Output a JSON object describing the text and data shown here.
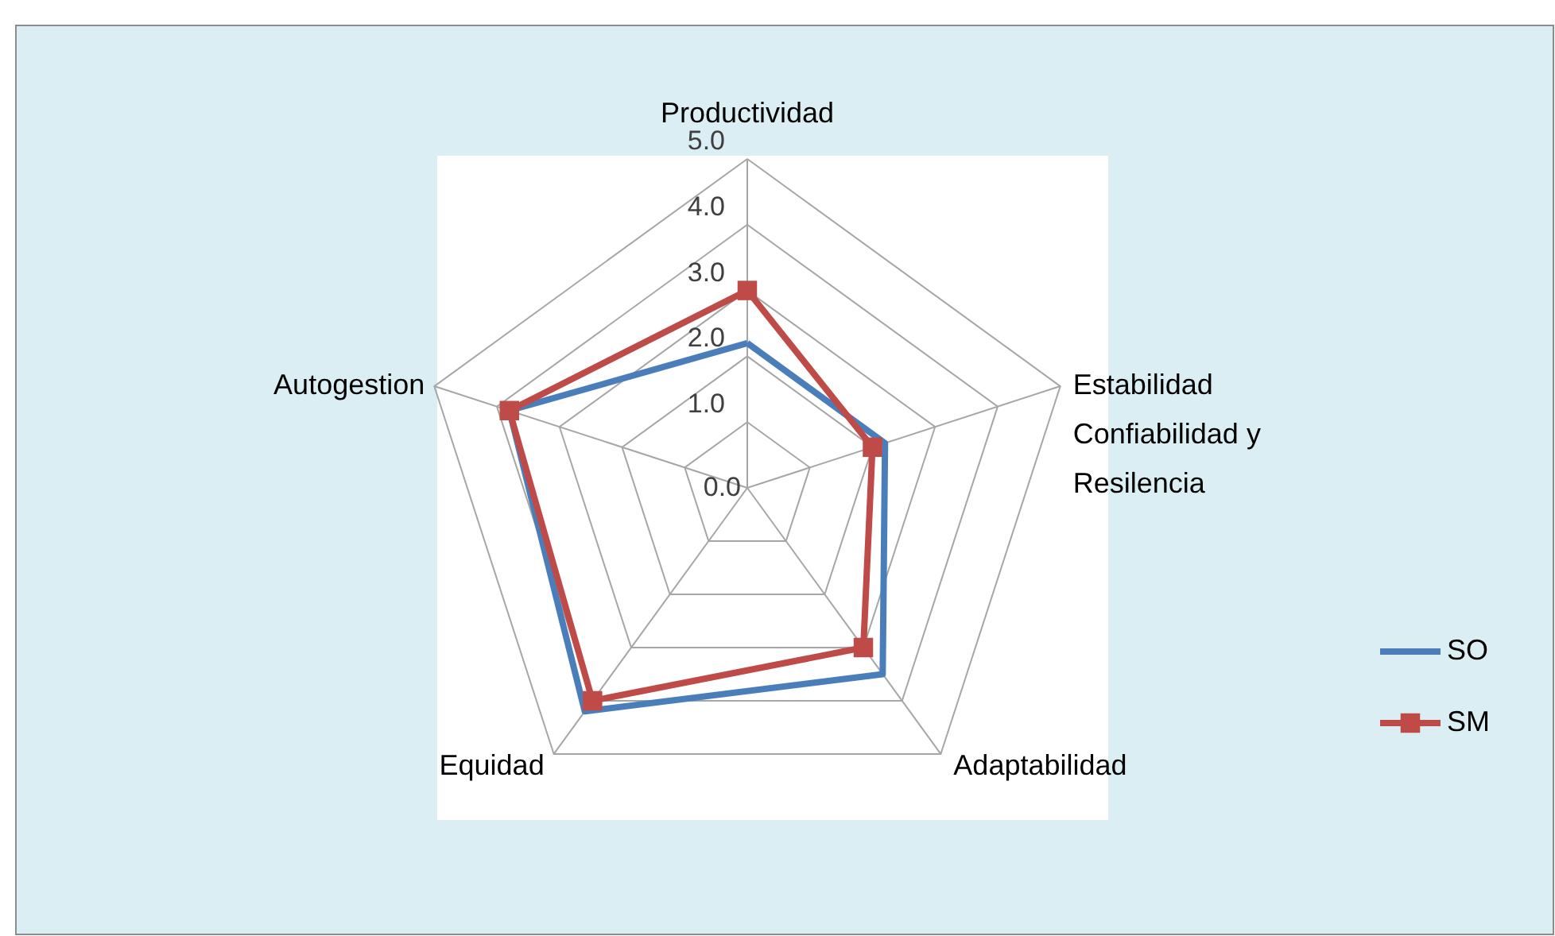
{
  "chart_data": {
    "type": "radar",
    "categories": [
      "Productividad",
      "Estabilidad Confiabilidad y Resilencia",
      "Adaptabilidad",
      "Equidad",
      "Autogestion"
    ],
    "ylim": [
      0,
      5
    ],
    "yticks": [
      {
        "value": 0,
        "label": "0.0"
      },
      {
        "value": 1,
        "label": "1.0"
      },
      {
        "value": 2,
        "label": "2.0"
      },
      {
        "value": 3,
        "label": "3.0"
      },
      {
        "value": 4,
        "label": "4.0"
      },
      {
        "value": 5,
        "label": "5.0"
      }
    ],
    "grid": true,
    "legend": "right",
    "series": [
      {
        "name": "SO",
        "color": "#4a7ebb",
        "marker": "none",
        "values": [
          2.2,
          2.2,
          3.5,
          4.2,
          3.8
        ]
      },
      {
        "name": "SM",
        "color": "#be4b48",
        "marker": "square",
        "values": [
          3.0,
          2.0,
          3.0,
          4.0,
          3.8
        ]
      }
    ]
  }
}
